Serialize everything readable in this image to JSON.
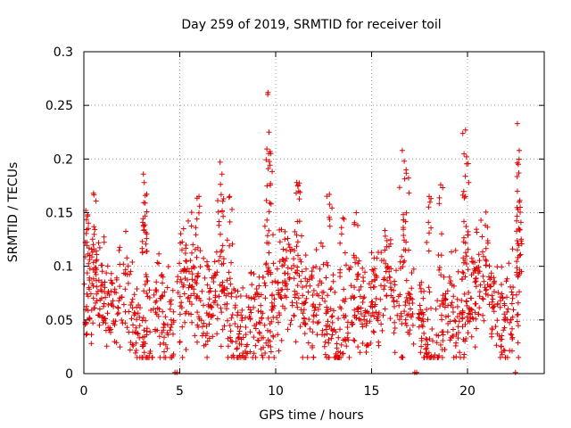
{
  "chart_data": {
    "type": "scatter",
    "title": "Day 259 of 2019, SRMTID for receiver toil",
    "xlabel": "GPS time / hours",
    "ylabel": "SRMTID / TECUs",
    "xlim": [
      0,
      24
    ],
    "ylim": [
      0,
      0.3
    ],
    "x_ticks": [
      0,
      5,
      10,
      15,
      20
    ],
    "y_ticks": [
      0,
      0.05,
      0.1,
      0.15,
      0.2,
      0.25,
      0.3
    ],
    "x_tick_labels": [
      "0",
      "5",
      "10",
      "15",
      "20"
    ],
    "y_tick_labels": [
      "0",
      "0.05",
      "0.1",
      "0.15",
      "0.2",
      "0.25",
      "0.3"
    ],
    "grid": true,
    "marker": "plus",
    "color": "#e00000",
    "gaps": [
      [
        4.7,
        4.85
      ],
      [
        17.2,
        17.4
      ],
      [
        22.4,
        22.55
      ]
    ],
    "gap_markers_x": [
      4.75,
      4.85,
      17.25,
      17.35,
      22.5
    ],
    "peaks": [
      {
        "x": 0.1,
        "y": 0.152
      },
      {
        "x": 0.2,
        "y": 0.148
      },
      {
        "x": 0.5,
        "y": 0.168
      },
      {
        "x": 3.1,
        "y": 0.186
      },
      {
        "x": 3.15,
        "y": 0.178
      },
      {
        "x": 3.2,
        "y": 0.166
      },
      {
        "x": 5.2,
        "y": 0.135
      },
      {
        "x": 6.0,
        "y": 0.165
      },
      {
        "x": 7.1,
        "y": 0.197
      },
      {
        "x": 7.2,
        "y": 0.186
      },
      {
        "x": 7.6,
        "y": 0.165
      },
      {
        "x": 9.6,
        "y": 0.262
      },
      {
        "x": 9.65,
        "y": 0.225
      },
      {
        "x": 9.75,
        "y": 0.205
      },
      {
        "x": 9.55,
        "y": 0.175
      },
      {
        "x": 11.1,
        "y": 0.178
      },
      {
        "x": 11.2,
        "y": 0.17
      },
      {
        "x": 12.8,
        "y": 0.167
      },
      {
        "x": 13.5,
        "y": 0.145
      },
      {
        "x": 14.2,
        "y": 0.15
      },
      {
        "x": 16.6,
        "y": 0.208
      },
      {
        "x": 16.7,
        "y": 0.198
      },
      {
        "x": 16.8,
        "y": 0.19
      },
      {
        "x": 18.0,
        "y": 0.165
      },
      {
        "x": 18.6,
        "y": 0.176
      },
      {
        "x": 19.9,
        "y": 0.227
      },
      {
        "x": 19.95,
        "y": 0.202
      },
      {
        "x": 19.9,
        "y": 0.165
      },
      {
        "x": 22.6,
        "y": 0.233
      },
      {
        "x": 22.7,
        "y": 0.208
      },
      {
        "x": 22.65,
        "y": 0.195
      },
      {
        "x": 22.6,
        "y": 0.17
      },
      {
        "x": 22.7,
        "y": 0.16
      }
    ]
  }
}
